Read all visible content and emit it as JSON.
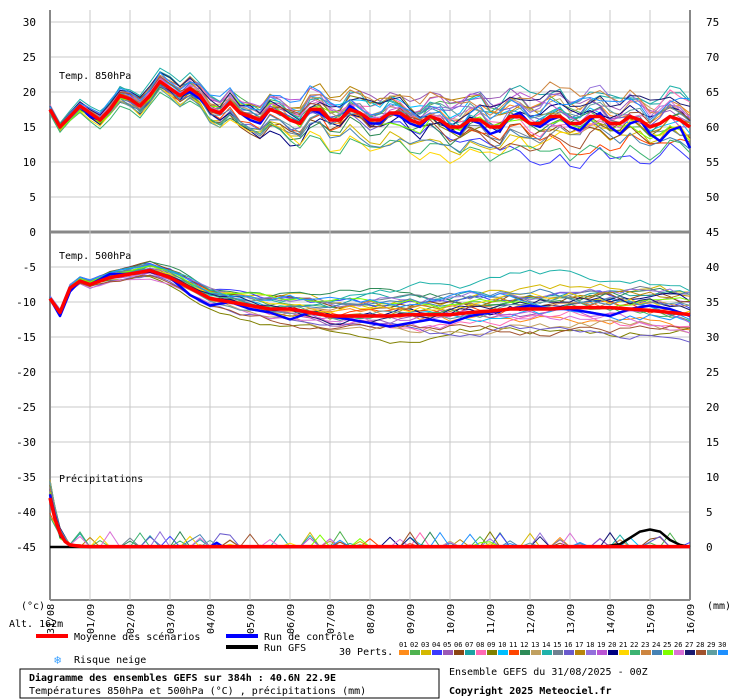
{
  "chart_data": {
    "type": "line",
    "left_axis_ticks": [
      "30",
      "25",
      "20",
      "15",
      "10",
      "5",
      "0",
      "-5",
      "-10",
      "-15",
      "-20",
      "-25",
      "-30",
      "-35",
      "-40",
      "-45"
    ],
    "right_axis_ticks": [
      "75",
      "70",
      "65",
      "60",
      "55",
      "50",
      "45",
      "40",
      "35",
      "30",
      "25",
      "20",
      "15",
      "10",
      "5",
      "0"
    ],
    "left_unit": "(°c)",
    "right_unit": "(mm)",
    "altitude": "Alt. 162m",
    "date_labels": [
      "31/08",
      "01/09",
      "02/09",
      "03/09",
      "04/09",
      "05/09",
      "06/09",
      "07/09",
      "08/09",
      "09/09",
      "10/09",
      "11/09",
      "12/09",
      "13/09",
      "14/09",
      "15/09",
      "16/09"
    ],
    "panel_labels": {
      "t850": "Temp. 850hPa",
      "t500": "Temp. 500hPa",
      "precip": "Précipitations"
    },
    "x_range_hours": [
      0,
      384
    ],
    "t850": {
      "ylim": [
        0,
        30
      ],
      "mean": [
        [
          0,
          17.5
        ],
        [
          6,
          15.0
        ],
        [
          12,
          16.5
        ],
        [
          18,
          18.0
        ],
        [
          24,
          17.0
        ],
        [
          30,
          16.0
        ],
        [
          36,
          17.5
        ],
        [
          42,
          19.5
        ],
        [
          48,
          19.0
        ],
        [
          54,
          18.0
        ],
        [
          60,
          19.5
        ],
        [
          66,
          21.5
        ],
        [
          72,
          20.5
        ],
        [
          78,
          19.5
        ],
        [
          84,
          20.5
        ],
        [
          90,
          19.5
        ],
        [
          96,
          17.5
        ],
        [
          102,
          17.0
        ],
        [
          108,
          18.5
        ],
        [
          114,
          17.0
        ],
        [
          120,
          16.5
        ],
        [
          126,
          16.0
        ],
        [
          132,
          17.5
        ],
        [
          138,
          17.0
        ],
        [
          144,
          16.0
        ],
        [
          150,
          15.5
        ],
        [
          156,
          17.5
        ],
        [
          162,
          17.5
        ],
        [
          168,
          16.0
        ],
        [
          174,
          16.0
        ],
        [
          180,
          17.5
        ],
        [
          186,
          17.0
        ],
        [
          192,
          16.0
        ],
        [
          198,
          16.0
        ],
        [
          204,
          17.0
        ],
        [
          210,
          17.0
        ],
        [
          216,
          16.0
        ],
        [
          222,
          15.5
        ],
        [
          228,
          16.5
        ],
        [
          234,
          16.0
        ],
        [
          240,
          15.0
        ],
        [
          246,
          15.0
        ],
        [
          252,
          16.0
        ],
        [
          258,
          16.0
        ],
        [
          264,
          15.0
        ],
        [
          270,
          15.0
        ],
        [
          276,
          16.5
        ],
        [
          282,
          16.5
        ],
        [
          288,
          15.5
        ],
        [
          294,
          15.5
        ],
        [
          300,
          16.5
        ],
        [
          306,
          16.5
        ],
        [
          312,
          15.5
        ],
        [
          318,
          15.5
        ],
        [
          324,
          16.5
        ],
        [
          330,
          16.5
        ],
        [
          336,
          15.5
        ],
        [
          342,
          15.5
        ],
        [
          348,
          16.5
        ],
        [
          354,
          16.0
        ],
        [
          360,
          15.0
        ],
        [
          366,
          15.5
        ],
        [
          372,
          16.5
        ],
        [
          378,
          16.0
        ],
        [
          384,
          15.0
        ]
      ],
      "control": [
        [
          0,
          17.5
        ],
        [
          6,
          15.0
        ],
        [
          12,
          16.5
        ],
        [
          18,
          18.0
        ],
        [
          24,
          16.5
        ],
        [
          30,
          16.0
        ],
        [
          36,
          17.5
        ],
        [
          42,
          19.5
        ],
        [
          48,
          19.0
        ],
        [
          54,
          18.0
        ],
        [
          60,
          19.5
        ],
        [
          66,
          21.5
        ],
        [
          72,
          20.5
        ],
        [
          78,
          19.5
        ],
        [
          84,
          20.0
        ],
        [
          90,
          19.0
        ],
        [
          96,
          17.5
        ],
        [
          102,
          17.0
        ],
        [
          108,
          18.5
        ],
        [
          114,
          17.0
        ],
        [
          120,
          16.0
        ],
        [
          126,
          15.5
        ],
        [
          132,
          17.5
        ],
        [
          138,
          17.0
        ],
        [
          144,
          16.0
        ],
        [
          150,
          15.5
        ],
        [
          156,
          17.5
        ],
        [
          162,
          17.0
        ],
        [
          168,
          16.0
        ],
        [
          174,
          16.0
        ],
        [
          180,
          18.0
        ],
        [
          186,
          17.0
        ],
        [
          192,
          15.5
        ],
        [
          198,
          15.5
        ],
        [
          204,
          17.0
        ],
        [
          210,
          16.5
        ],
        [
          216,
          15.5
        ],
        [
          222,
          15.0
        ],
        [
          228,
          16.5
        ],
        [
          234,
          16.0
        ],
        [
          240,
          14.5
        ],
        [
          246,
          14.0
        ],
        [
          252,
          16.0
        ],
        [
          258,
          15.5
        ],
        [
          264,
          14.0
        ],
        [
          270,
          14.5
        ],
        [
          276,
          16.5
        ],
        [
          282,
          17.0
        ],
        [
          288,
          15.5
        ],
        [
          294,
          15.0
        ],
        [
          300,
          16.0
        ],
        [
          306,
          16.5
        ],
        [
          312,
          15.0
        ],
        [
          318,
          14.5
        ],
        [
          324,
          16.0
        ],
        [
          330,
          17.0
        ],
        [
          336,
          15.0
        ],
        [
          342,
          14.0
        ],
        [
          348,
          15.5
        ],
        [
          354,
          16.0
        ],
        [
          360,
          14.0
        ],
        [
          366,
          13.0
        ],
        [
          372,
          14.5
        ],
        [
          378,
          15.0
        ],
        [
          384,
          12.0
        ]
      ]
    },
    "t500": {
      "ylim": [
        -20,
        -5
      ],
      "mean": [
        [
          0,
          -9.5
        ],
        [
          6,
          -11.5
        ],
        [
          12,
          -8.0
        ],
        [
          18,
          -7.0
        ],
        [
          24,
          -7.5
        ],
        [
          36,
          -6.5
        ],
        [
          48,
          -6.0
        ],
        [
          60,
          -5.5
        ],
        [
          72,
          -6.5
        ],
        [
          84,
          -8.0
        ],
        [
          96,
          -9.5
        ],
        [
          108,
          -10.0
        ],
        [
          120,
          -10.5
        ],
        [
          132,
          -11.0
        ],
        [
          144,
          -11.0
        ],
        [
          156,
          -11.5
        ],
        [
          168,
          -12.0
        ],
        [
          180,
          -12.0
        ],
        [
          192,
          -12.0
        ],
        [
          204,
          -12.0
        ],
        [
          216,
          -11.8
        ],
        [
          228,
          -11.8
        ],
        [
          240,
          -11.8
        ],
        [
          252,
          -11.5
        ],
        [
          264,
          -11.3
        ],
        [
          276,
          -11.0
        ],
        [
          288,
          -11.0
        ],
        [
          300,
          -11.0
        ],
        [
          312,
          -10.8
        ],
        [
          324,
          -10.8
        ],
        [
          336,
          -10.8
        ],
        [
          348,
          -11.0
        ],
        [
          360,
          -11.2
        ],
        [
          372,
          -11.5
        ],
        [
          384,
          -11.8
        ]
      ],
      "control": [
        [
          0,
          -9.5
        ],
        [
          6,
          -12.0
        ],
        [
          12,
          -8.5
        ],
        [
          18,
          -7.0
        ],
        [
          24,
          -7.5
        ],
        [
          36,
          -6.0
        ],
        [
          48,
          -6.0
        ],
        [
          60,
          -5.5
        ],
        [
          72,
          -6.5
        ],
        [
          84,
          -9.0
        ],
        [
          96,
          -10.5
        ],
        [
          108,
          -10.0
        ],
        [
          120,
          -11.0
        ],
        [
          132,
          -11.5
        ],
        [
          144,
          -12.5
        ],
        [
          156,
          -11.5
        ],
        [
          168,
          -12.0
        ],
        [
          180,
          -12.5
        ],
        [
          192,
          -13.0
        ],
        [
          204,
          -13.5
        ],
        [
          216,
          -13.0
        ],
        [
          228,
          -12.5
        ],
        [
          240,
          -13.0
        ],
        [
          252,
          -12.0
        ],
        [
          264,
          -11.5
        ],
        [
          276,
          -11.0
        ],
        [
          288,
          -10.5
        ],
        [
          300,
          -11.0
        ],
        [
          312,
          -11.0
        ],
        [
          324,
          -11.5
        ],
        [
          336,
          -12.0
        ],
        [
          348,
          -11.0
        ],
        [
          360,
          -10.5
        ],
        [
          372,
          -11.0
        ],
        [
          384,
          -12.0
        ]
      ]
    },
    "precip": {
      "ylim": [
        0,
        10
      ],
      "mean": [
        [
          0,
          7.0
        ],
        [
          3,
          4.0
        ],
        [
          6,
          2.0
        ],
        [
          9,
          0.8
        ],
        [
          12,
          0.3
        ],
        [
          18,
          0.1
        ],
        [
          24,
          0.05
        ],
        [
          384,
          0.05
        ]
      ],
      "control": [
        [
          0,
          7.5
        ],
        [
          3,
          4.5
        ],
        [
          6,
          2.0
        ],
        [
          9,
          0.8
        ],
        [
          12,
          0.3
        ],
        [
          18,
          0.1
        ],
        [
          24,
          0.0
        ],
        [
          96,
          0.0
        ],
        [
          100,
          0.6
        ],
        [
          104,
          0.0
        ],
        [
          384,
          0.0
        ]
      ],
      "gfs": [
        [
          0,
          0.0
        ],
        [
          330,
          0.0
        ],
        [
          342,
          0.4
        ],
        [
          354,
          2.2
        ],
        [
          360,
          2.5
        ],
        [
          366,
          2.2
        ],
        [
          372,
          1.0
        ],
        [
          378,
          0.3
        ],
        [
          384,
          0.0
        ]
      ]
    },
    "legend": {
      "mean": "Moyenne des scénarios",
      "control": "Run de contrôle",
      "gfs": "Run GFS",
      "snow": "Risque neige",
      "perts": "30 Perts."
    },
    "perturbation_labels": [
      "01",
      "02",
      "03",
      "04",
      "05",
      "06",
      "07",
      "08",
      "09",
      "10",
      "11",
      "12",
      "13",
      "14",
      "15",
      "16",
      "17",
      "18",
      "19",
      "20",
      "21",
      "22",
      "23",
      "24",
      "25",
      "26",
      "27",
      "28",
      "29",
      "30"
    ],
    "perturbation_colors": [
      "#ff8c1a",
      "#4fb34f",
      "#d4b800",
      "#3a3aff",
      "#9b59b6",
      "#8b4513",
      "#1aa3a3",
      "#ff69b4",
      "#808000",
      "#00bfff",
      "#ff4500",
      "#2e8b57",
      "#c0a060",
      "#20b2aa",
      "#708090",
      "#6a5acd",
      "#b8860b",
      "#9370db",
      "#ba55d3",
      "#000080",
      "#ffd700",
      "#3cb371",
      "#cd853f",
      "#4682b4",
      "#7fff00",
      "#da70d6",
      "#191970",
      "#a0522d",
      "#5f9ea0",
      "#1e90ff"
    ],
    "colors": {
      "mean": "#ff0000",
      "control": "#0000ff",
      "gfs": "#000000"
    },
    "footer": {
      "title": "Diagramme des ensembles GEFS sur 384h : 40.6N 22.9E",
      "subtitle": "Températures 850hPa et 500hPa (°C) , précipitations (mm)",
      "run": "Ensemble GEFS du 31/08/2025 - 00Z",
      "copyright": "Copyright 2025 Meteociel.fr"
    }
  }
}
